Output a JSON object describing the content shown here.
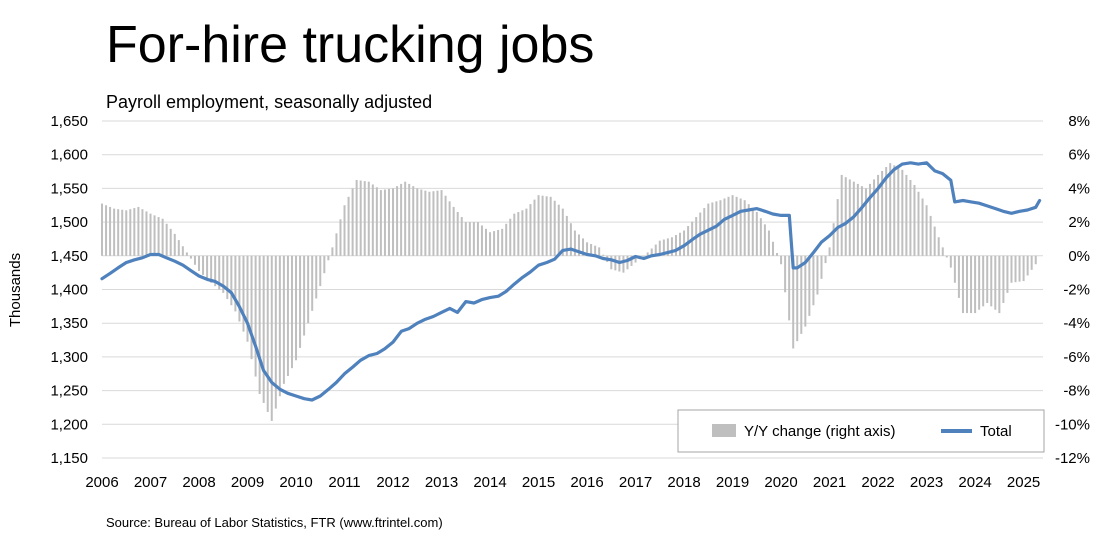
{
  "chart_data": {
    "type": "bar+line",
    "title": "For-hire trucking jobs",
    "subtitle": "Payroll employment, seasonally adjusted",
    "ylabel": "Thousands",
    "source": "Source: Bureau of Labor Statistics, FTR (www.ftrintel.com)",
    "x_range": [
      2006.0,
      2025.4
    ],
    "x_ticks": [
      "2006",
      "2007",
      "2008",
      "2009",
      "2010",
      "2011",
      "2012",
      "2013",
      "2014",
      "2015",
      "2016",
      "2017",
      "2018",
      "2019",
      "2020",
      "2021",
      "2022",
      "2023",
      "2024",
      "2025"
    ],
    "y_left": {
      "range": [
        1150,
        1650
      ],
      "ticks": [
        "1,150",
        "1,200",
        "1,250",
        "1,300",
        "1,350",
        "1,400",
        "1,450",
        "1,500",
        "1,550",
        "1,600",
        "1,650"
      ]
    },
    "y_right": {
      "range": [
        -12,
        8
      ],
      "ticks": [
        "-12%",
        "-10%",
        "-8%",
        "-6%",
        "-4%",
        "-2%",
        "0%",
        "2%",
        "4%",
        "6%",
        "8%"
      ]
    },
    "grid": true,
    "legend": {
      "placement": "bottom-right",
      "bars_label": "Y/Y change (right axis)",
      "line_label": "Total"
    },
    "colors": {
      "line": "#4f81bd",
      "bars": "#bfbfbf",
      "grid": "#d9d9d9",
      "legend_border": "#a6a6a6"
    },
    "series": [
      {
        "name": "Total",
        "axis": "left",
        "points": [
          [
            2006.0,
            1416
          ],
          [
            2006.17,
            1424
          ],
          [
            2006.33,
            1432
          ],
          [
            2006.5,
            1440
          ],
          [
            2006.67,
            1444
          ],
          [
            2006.83,
            1447
          ],
          [
            2007.0,
            1452
          ],
          [
            2007.17,
            1452
          ],
          [
            2007.33,
            1447
          ],
          [
            2007.5,
            1442
          ],
          [
            2007.67,
            1436
          ],
          [
            2007.83,
            1428
          ],
          [
            2008.0,
            1420
          ],
          [
            2008.17,
            1415
          ],
          [
            2008.33,
            1412
          ],
          [
            2008.5,
            1405
          ],
          [
            2008.67,
            1395
          ],
          [
            2008.83,
            1375
          ],
          [
            2009.0,
            1350
          ],
          [
            2009.17,
            1315
          ],
          [
            2009.33,
            1280
          ],
          [
            2009.5,
            1262
          ],
          [
            2009.67,
            1252
          ],
          [
            2009.83,
            1246
          ],
          [
            2010.0,
            1242
          ],
          [
            2010.17,
            1238
          ],
          [
            2010.33,
            1236
          ],
          [
            2010.5,
            1242
          ],
          [
            2010.67,
            1252
          ],
          [
            2010.83,
            1262
          ],
          [
            2011.0,
            1275
          ],
          [
            2011.17,
            1285
          ],
          [
            2011.33,
            1295
          ],
          [
            2011.5,
            1302
          ],
          [
            2011.67,
            1305
          ],
          [
            2011.83,
            1312
          ],
          [
            2012.0,
            1322
          ],
          [
            2012.17,
            1338
          ],
          [
            2012.33,
            1342
          ],
          [
            2012.5,
            1350
          ],
          [
            2012.67,
            1356
          ],
          [
            2012.83,
            1360
          ],
          [
            2013.0,
            1366
          ],
          [
            2013.17,
            1372
          ],
          [
            2013.33,
            1366
          ],
          [
            2013.5,
            1382
          ],
          [
            2013.67,
            1380
          ],
          [
            2013.83,
            1385
          ],
          [
            2014.0,
            1388
          ],
          [
            2014.17,
            1390
          ],
          [
            2014.33,
            1397
          ],
          [
            2014.5,
            1408
          ],
          [
            2014.67,
            1418
          ],
          [
            2014.83,
            1426
          ],
          [
            2015.0,
            1436
          ],
          [
            2015.17,
            1440
          ],
          [
            2015.33,
            1445
          ],
          [
            2015.5,
            1458
          ],
          [
            2015.67,
            1460
          ],
          [
            2015.83,
            1456
          ],
          [
            2016.0,
            1452
          ],
          [
            2016.17,
            1450
          ],
          [
            2016.33,
            1446
          ],
          [
            2016.5,
            1444
          ],
          [
            2016.67,
            1440
          ],
          [
            2016.83,
            1443
          ],
          [
            2017.0,
            1449
          ],
          [
            2017.17,
            1446
          ],
          [
            2017.33,
            1450
          ],
          [
            2017.5,
            1452
          ],
          [
            2017.67,
            1455
          ],
          [
            2017.83,
            1458
          ],
          [
            2018.0,
            1465
          ],
          [
            2018.17,
            1474
          ],
          [
            2018.33,
            1482
          ],
          [
            2018.5,
            1488
          ],
          [
            2018.67,
            1494
          ],
          [
            2018.83,
            1504
          ],
          [
            2019.0,
            1510
          ],
          [
            2019.17,
            1516
          ],
          [
            2019.33,
            1518
          ],
          [
            2019.5,
            1520
          ],
          [
            2019.67,
            1516
          ],
          [
            2019.83,
            1512
          ],
          [
            2020.0,
            1510
          ],
          [
            2020.17,
            1510
          ],
          [
            2020.25,
            1432
          ],
          [
            2020.33,
            1432
          ],
          [
            2020.5,
            1440
          ],
          [
            2020.67,
            1455
          ],
          [
            2020.83,
            1470
          ],
          [
            2021.0,
            1480
          ],
          [
            2021.17,
            1492
          ],
          [
            2021.33,
            1498
          ],
          [
            2021.5,
            1508
          ],
          [
            2021.67,
            1522
          ],
          [
            2021.83,
            1536
          ],
          [
            2022.0,
            1550
          ],
          [
            2022.17,
            1566
          ],
          [
            2022.33,
            1578
          ],
          [
            2022.5,
            1586
          ],
          [
            2022.67,
            1588
          ],
          [
            2022.83,
            1586
          ],
          [
            2023.0,
            1588
          ],
          [
            2023.17,
            1576
          ],
          [
            2023.33,
            1572
          ],
          [
            2023.5,
            1562
          ],
          [
            2023.58,
            1530
          ],
          [
            2023.75,
            1532
          ],
          [
            2023.92,
            1530
          ],
          [
            2024.08,
            1528
          ],
          [
            2024.25,
            1524
          ],
          [
            2024.42,
            1520
          ],
          [
            2024.58,
            1516
          ],
          [
            2024.75,
            1513
          ],
          [
            2024.92,
            1516
          ],
          [
            2025.08,
            1518
          ],
          [
            2025.25,
            1522
          ],
          [
            2025.33,
            1532
          ]
        ]
      },
      {
        "name": "Y/Y change (right axis)",
        "axis": "right",
        "points": [
          [
            2006.0,
            3.1
          ],
          [
            2006.25,
            2.8
          ],
          [
            2006.5,
            2.7
          ],
          [
            2006.75,
            2.9
          ],
          [
            2007.0,
            2.5
          ],
          [
            2007.25,
            2.2
          ],
          [
            2007.5,
            1.3
          ],
          [
            2007.75,
            0.2
          ],
          [
            2008.0,
            -0.9
          ],
          [
            2008.25,
            -1.6
          ],
          [
            2008.5,
            -2.2
          ],
          [
            2008.75,
            -3.3
          ],
          [
            2009.0,
            -5.1
          ],
          [
            2009.25,
            -8.2
          ],
          [
            2009.5,
            -9.8
          ],
          [
            2009.75,
            -7.6
          ],
          [
            2010.0,
            -6.2
          ],
          [
            2010.25,
            -4.0
          ],
          [
            2010.5,
            -1.8
          ],
          [
            2010.75,
            0.5
          ],
          [
            2011.0,
            3.0
          ],
          [
            2011.25,
            4.5
          ],
          [
            2011.5,
            4.4
          ],
          [
            2011.75,
            3.9
          ],
          [
            2012.0,
            4.0
          ],
          [
            2012.25,
            4.4
          ],
          [
            2012.5,
            4.0
          ],
          [
            2012.75,
            3.8
          ],
          [
            2013.0,
            3.9
          ],
          [
            2013.25,
            2.9
          ],
          [
            2013.5,
            2.0
          ],
          [
            2013.75,
            2.0
          ],
          [
            2014.0,
            1.4
          ],
          [
            2014.25,
            1.6
          ],
          [
            2014.5,
            2.5
          ],
          [
            2014.75,
            2.8
          ],
          [
            2015.0,
            3.6
          ],
          [
            2015.25,
            3.5
          ],
          [
            2015.5,
            2.8
          ],
          [
            2015.75,
            1.5
          ],
          [
            2016.0,
            0.8
          ],
          [
            2016.25,
            0.5
          ],
          [
            2016.5,
            -0.8
          ],
          [
            2016.75,
            -1.0
          ],
          [
            2017.0,
            -0.4
          ],
          [
            2017.25,
            0.2
          ],
          [
            2017.5,
            0.9
          ],
          [
            2017.75,
            1.1
          ],
          [
            2018.0,
            1.5
          ],
          [
            2018.25,
            2.3
          ],
          [
            2018.5,
            3.1
          ],
          [
            2018.75,
            3.3
          ],
          [
            2019.0,
            3.6
          ],
          [
            2019.25,
            3.3
          ],
          [
            2019.5,
            2.6
          ],
          [
            2019.75,
            1.5
          ],
          [
            2020.0,
            -0.5
          ],
          [
            2020.25,
            -5.5
          ],
          [
            2020.5,
            -4.2
          ],
          [
            2020.75,
            -2.3
          ],
          [
            2021.0,
            0.5
          ],
          [
            2021.25,
            4.8
          ],
          [
            2021.5,
            4.4
          ],
          [
            2021.75,
            4.0
          ],
          [
            2022.0,
            4.8
          ],
          [
            2022.25,
            5.5
          ],
          [
            2022.5,
            5.1
          ],
          [
            2022.75,
            4.2
          ],
          [
            2023.0,
            3.0
          ],
          [
            2023.25,
            1.1
          ],
          [
            2023.5,
            -0.7
          ],
          [
            2023.75,
            -3.4
          ],
          [
            2024.0,
            -3.4
          ],
          [
            2024.25,
            -2.8
          ],
          [
            2024.5,
            -3.4
          ],
          [
            2024.75,
            -1.6
          ],
          [
            2025.0,
            -1.5
          ],
          [
            2025.25,
            -0.5
          ]
        ]
      }
    ]
  }
}
